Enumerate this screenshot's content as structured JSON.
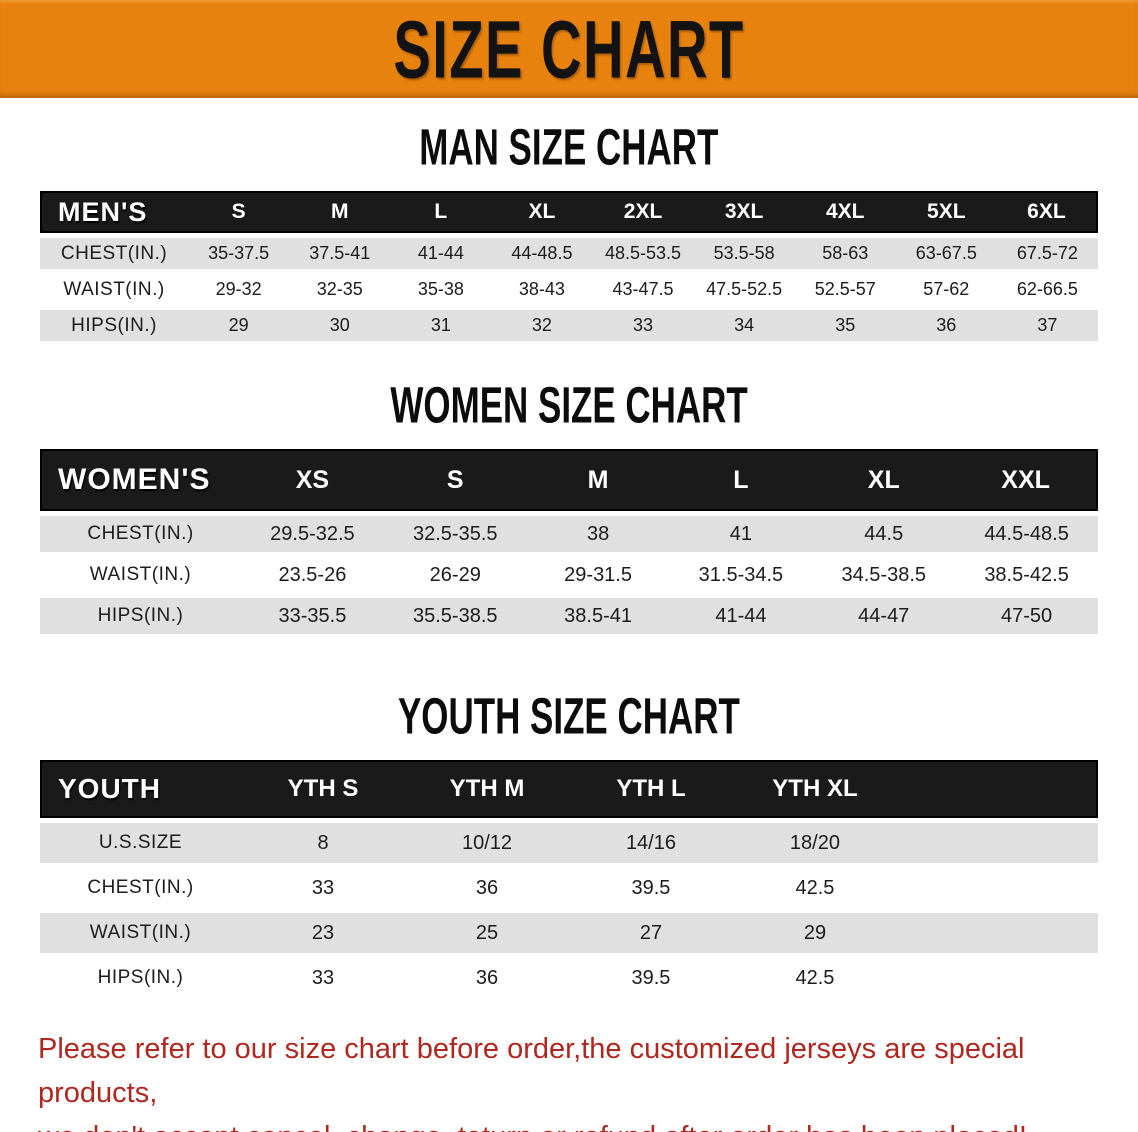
{
  "banner": {
    "title": "SIZE CHART"
  },
  "sections": [
    {
      "title": "MAN SIZE CHART",
      "corner_label": "MEN'S",
      "columns": [
        "S",
        "M",
        "L",
        "XL",
        "2XL",
        "3XL",
        "4XL",
        "5XL",
        "6XL"
      ],
      "rows": [
        {
          "label": "CHEST(IN.)",
          "values": [
            "35-37.5",
            "37.5-41",
            "41-44",
            "44-48.5",
            "48.5-53.5",
            "53.5-58",
            "58-63",
            "63-67.5",
            "67.5-72"
          ]
        },
        {
          "label": "WAIST(IN.)",
          "values": [
            "29-32",
            "32-35",
            "35-38",
            "38-43",
            "43-47.5",
            "47.5-52.5",
            "52.5-57",
            "57-62",
            "62-66.5"
          ]
        },
        {
          "label": "HIPS(IN.)",
          "values": [
            "29",
            "30",
            "31",
            "32",
            "33",
            "34",
            "35",
            "36",
            "37"
          ]
        }
      ]
    },
    {
      "title": "WOMEN SIZE CHART",
      "corner_label": "WOMEN'S",
      "columns": [
        "XS",
        "S",
        "M",
        "L",
        "XL",
        "XXL"
      ],
      "rows": [
        {
          "label": "CHEST(IN.)",
          "values": [
            "29.5-32.5",
            "32.5-35.5",
            "38",
            "41",
            "44.5",
            "44.5-48.5"
          ]
        },
        {
          "label": "WAIST(IN.)",
          "values": [
            "23.5-26",
            "26-29",
            "29-31.5",
            "31.5-34.5",
            "34.5-38.5",
            "38.5-42.5"
          ]
        },
        {
          "label": "HIPS(IN.)",
          "values": [
            "33-35.5",
            "35.5-38.5",
            "38.5-41",
            "41-44",
            "44-47",
            "47-50"
          ]
        }
      ]
    },
    {
      "title": "YOUTH SIZE CHART",
      "corner_label": "YOUTH",
      "columns": [
        "YTH S",
        "YTH M",
        "YTH L",
        "YTH XL"
      ],
      "rows": [
        {
          "label": "U.S.SIZE",
          "values": [
            "8",
            "10/12",
            "14/16",
            "18/20"
          ]
        },
        {
          "label": "CHEST(IN.)",
          "values": [
            "33",
            "36",
            "39.5",
            "42.5"
          ]
        },
        {
          "label": "WAIST(IN.)",
          "values": [
            "23",
            "25",
            "27",
            "29"
          ]
        },
        {
          "label": "HIPS(IN.)",
          "values": [
            "33",
            "36",
            "39.5",
            "42.5"
          ]
        }
      ]
    }
  ],
  "disclaimer": {
    "line1": "Please refer to our size chart before order,the customized jerseys are special products,",
    "line2": "we don't accept cancel, change, teturn or refund after order has been placed!"
  },
  "colors": {
    "banner_orange": "#E8820E",
    "header_black": "#1A1A1A",
    "row_gray": "#E0E0E0",
    "disclaimer_red": "#B0271F"
  }
}
